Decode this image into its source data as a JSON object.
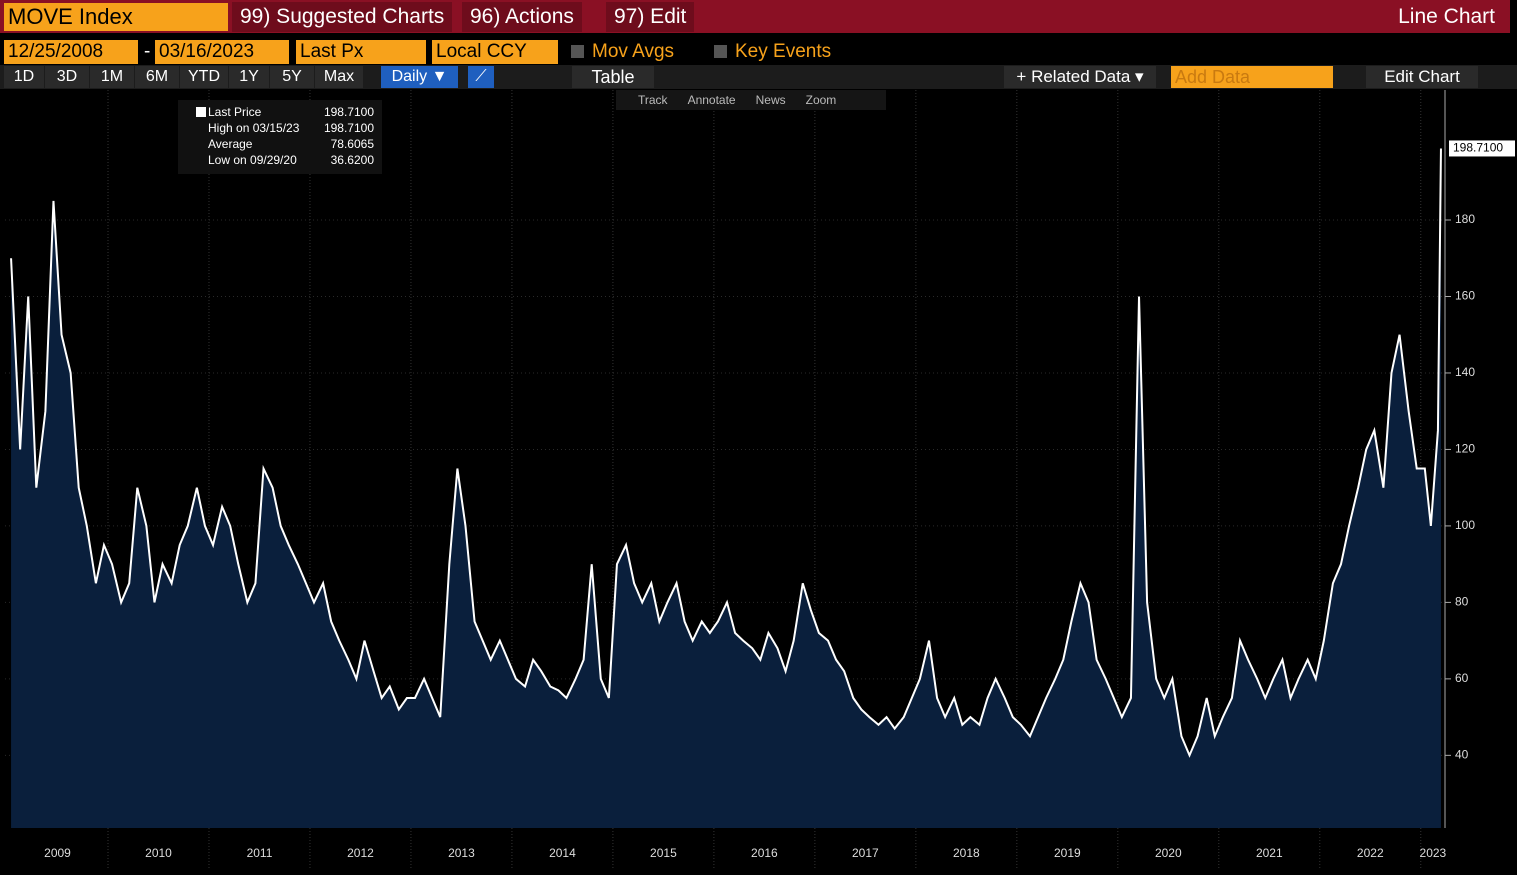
{
  "header": {
    "ticker": "MOVE Index",
    "menus": [
      "99) Suggested Charts",
      "96) Actions",
      "97) Edit"
    ],
    "chart_kind": "Line Chart"
  },
  "controls": {
    "start_date": "12/25/2008",
    "dash": "-",
    "end_date": "03/16/2023",
    "field": "Last Px",
    "currency": "Local CCY",
    "options": [
      "Mov Avgs",
      "Key Events"
    ]
  },
  "toolbar": {
    "ranges": [
      "1D",
      "3D",
      "1M",
      "6M",
      "YTD",
      "1Y",
      "5Y",
      "Max"
    ],
    "frequency": "Daily ▼",
    "table": "Table",
    "related": "+ Related Data ▾",
    "add_data": "Add Data",
    "edit_chart": "Edit Chart",
    "tools": [
      "Track",
      "Annotate",
      "News",
      "Zoom"
    ]
  },
  "legend": {
    "rows": [
      {
        "label": "Last Price",
        "value": "198.7100"
      },
      {
        "label": "High on 03/15/23",
        "value": "198.7100"
      },
      {
        "label": "Average",
        "value": "78.6065"
      },
      {
        "label": "Low on 09/29/20",
        "value": "36.6200"
      }
    ]
  },
  "chart_data": {
    "type": "line",
    "xlim": [
      2008.98,
      2023.24
    ],
    "ylim": [
      21,
      214
    ],
    "yticks": [
      40,
      60,
      80,
      100,
      120,
      140,
      160,
      180
    ],
    "xticks": [
      {
        "value": 2009.5,
        "label": "2009"
      },
      {
        "value": 2010.5,
        "label": "2010"
      },
      {
        "value": 2011.5,
        "label": "2011"
      },
      {
        "value": 2012.5,
        "label": "2012"
      },
      {
        "value": 2013.5,
        "label": "2013"
      },
      {
        "value": 2014.5,
        "label": "2014"
      },
      {
        "value": 2015.5,
        "label": "2015"
      },
      {
        "value": 2016.5,
        "label": "2016"
      },
      {
        "value": 2017.5,
        "label": "2017"
      },
      {
        "value": 2018.5,
        "label": "2018"
      },
      {
        "value": 2019.5,
        "label": "2019"
      },
      {
        "value": 2020.5,
        "label": "2020"
      },
      {
        "value": 2021.5,
        "label": "2021"
      },
      {
        "value": 2022.5,
        "label": "2022"
      },
      {
        "value": 2023.12,
        "label": "2023"
      }
    ],
    "xgrid": [
      2010,
      2011,
      2012,
      2013,
      2014,
      2015,
      2016,
      2017,
      2018,
      2019,
      2020,
      2021,
      2022,
      2023
    ],
    "x": [
      2009.04,
      2009.13,
      2009.21,
      2009.29,
      2009.38,
      2009.46,
      2009.54,
      2009.63,
      2009.71,
      2009.79,
      2009.88,
      2009.96,
      2010.04,
      2010.13,
      2010.21,
      2010.29,
      2010.38,
      2010.46,
      2010.54,
      2010.63,
      2010.71,
      2010.79,
      2010.88,
      2010.96,
      2011.04,
      2011.13,
      2011.21,
      2011.29,
      2011.38,
      2011.46,
      2011.54,
      2011.63,
      2011.71,
      2011.79,
      2011.88,
      2011.96,
      2012.04,
      2012.13,
      2012.21,
      2012.29,
      2012.38,
      2012.46,
      2012.54,
      2012.63,
      2012.71,
      2012.79,
      2012.88,
      2012.96,
      2013.04,
      2013.13,
      2013.21,
      2013.29,
      2013.38,
      2013.46,
      2013.54,
      2013.63,
      2013.71,
      2013.79,
      2013.88,
      2013.96,
      2014.04,
      2014.13,
      2014.21,
      2014.29,
      2014.38,
      2014.46,
      2014.54,
      2014.63,
      2014.71,
      2014.79,
      2014.88,
      2014.96,
      2015.04,
      2015.13,
      2015.21,
      2015.29,
      2015.38,
      2015.46,
      2015.54,
      2015.63,
      2015.71,
      2015.79,
      2015.88,
      2015.96,
      2016.04,
      2016.13,
      2016.21,
      2016.29,
      2016.38,
      2016.46,
      2016.54,
      2016.63,
      2016.71,
      2016.79,
      2016.88,
      2016.96,
      2017.04,
      2017.13,
      2017.21,
      2017.29,
      2017.38,
      2017.46,
      2017.54,
      2017.63,
      2017.71,
      2017.79,
      2017.88,
      2017.96,
      2018.04,
      2018.13,
      2018.21,
      2018.29,
      2018.38,
      2018.46,
      2018.54,
      2018.63,
      2018.71,
      2018.79,
      2018.88,
      2018.96,
      2019.04,
      2019.13,
      2019.21,
      2019.29,
      2019.38,
      2019.46,
      2019.54,
      2019.63,
      2019.71,
      2019.79,
      2019.88,
      2019.96,
      2020.04,
      2020.13,
      2020.21,
      2020.29,
      2020.38,
      2020.46,
      2020.54,
      2020.63,
      2020.71,
      2020.79,
      2020.88,
      2020.96,
      2021.04,
      2021.13,
      2021.21,
      2021.29,
      2021.38,
      2021.46,
      2021.54,
      2021.63,
      2021.71,
      2021.79,
      2021.88,
      2021.96,
      2022.04,
      2022.13,
      2022.21,
      2022.29,
      2022.38,
      2022.46,
      2022.54,
      2022.63,
      2022.71,
      2022.79,
      2022.88,
      2022.96,
      2023.04,
      2023.1,
      2023.17,
      2023.2
    ],
    "series": [
      {
        "name": "Last Price",
        "color": "#ffffff",
        "fill": "#0a1f3c",
        "values": [
          170,
          120,
          160,
          110,
          130,
          185,
          150,
          140,
          110,
          100,
          85,
          95,
          90,
          80,
          85,
          110,
          100,
          80,
          90,
          85,
          95,
          100,
          110,
          100,
          95,
          105,
          100,
          90,
          80,
          85,
          115,
          110,
          100,
          95,
          90,
          85,
          80,
          85,
          75,
          70,
          65,
          60,
          70,
          62,
          55,
          58,
          52,
          55,
          55,
          60,
          55,
          50,
          90,
          115,
          100,
          75,
          70,
          65,
          70,
          65,
          60,
          58,
          65,
          62,
          58,
          57,
          55,
          60,
          65,
          90,
          60,
          55,
          90,
          95,
          85,
          80,
          85,
          75,
          80,
          85,
          75,
          70,
          75,
          72,
          75,
          80,
          72,
          70,
          68,
          65,
          72,
          68,
          62,
          70,
          85,
          78,
          72,
          70,
          65,
          62,
          55,
          52,
          50,
          48,
          50,
          47,
          50,
          55,
          60,
          70,
          55,
          50,
          55,
          48,
          50,
          48,
          55,
          60,
          55,
          50,
          48,
          45,
          50,
          55,
          60,
          65,
          75,
          85,
          80,
          65,
          60,
          55,
          50,
          55,
          160,
          80,
          60,
          55,
          60,
          45,
          40,
          45,
          55,
          45,
          50,
          55,
          70,
          65,
          60,
          55,
          60,
          65,
          55,
          60,
          65,
          60,
          70,
          85,
          90,
          100,
          110,
          120,
          125,
          110,
          140,
          150,
          130,
          115,
          115,
          100,
          125,
          198.71
        ]
      }
    ]
  }
}
